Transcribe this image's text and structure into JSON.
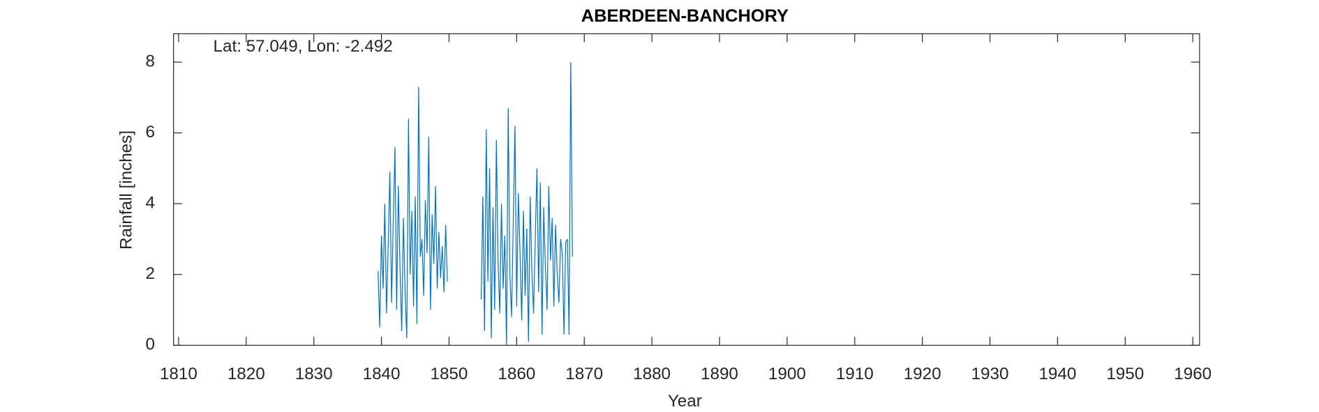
{
  "chart_data": {
    "type": "line",
    "title": "ABERDEEN-BANCHORY",
    "annotation": "Lat: 57.049, Lon: -2.492",
    "x_label": "Year",
    "y_label": "Rainfall [inches]",
    "xlim": [
      1809.25,
      1961
    ],
    "ylim": [
      0,
      8.8
    ],
    "xticks": [
      1810,
      1820,
      1830,
      1840,
      1850,
      1860,
      1870,
      1880,
      1890,
      1900,
      1910,
      1920,
      1930,
      1940,
      1950,
      1960
    ],
    "yticks": [
      0,
      2,
      4,
      6,
      8
    ],
    "x": [
      1839.5,
      1839.75,
      1840,
      1840.25,
      1840.5,
      1840.75,
      1841,
      1841.25,
      1841.5,
      1841.75,
      1842,
      1842.25,
      1842.5,
      1842.75,
      1843,
      1843.25,
      1843.5,
      1843.75,
      1844,
      1844.25,
      1844.5,
      1844.75,
      1845,
      1845.25,
      1845.5,
      1845.75,
      1846,
      1846.25,
      1846.5,
      1846.75,
      1847,
      1847.25,
      1847.5,
      1847.75,
      1848,
      1848.25,
      1848.5,
      1848.75,
      1849,
      1849.25,
      1849.5,
      1849.75,
      1852,
      1854.75,
      1855,
      1855.25,
      1855.5,
      1855.75,
      1856,
      1856.25,
      1856.5,
      1856.75,
      1857,
      1857.25,
      1857.5,
      1857.75,
      1858,
      1858.25,
      1858.5,
      1858.75,
      1859,
      1859.25,
      1859.5,
      1859.75,
      1860,
      1860.25,
      1860.5,
      1860.75,
      1861,
      1861.25,
      1861.5,
      1861.75,
      1862,
      1862.25,
      1862.5,
      1862.75,
      1863,
      1863.25,
      1863.5,
      1863.75,
      1864,
      1864.25,
      1864.5,
      1864.75,
      1865,
      1865.25,
      1865.5,
      1865.75,
      1866,
      1866.25,
      1866.5,
      1866.75,
      1867,
      1867.25,
      1867.5,
      1867.75,
      1868,
      1868.25
    ],
    "series": [
      {
        "color": "#0072bd",
        "values": [
          2.1,
          0.5,
          3.1,
          1.6,
          4.0,
          0.9,
          2.8,
          4.9,
          1.2,
          3.5,
          5.6,
          1.0,
          4.5,
          2.2,
          0.4,
          3.6,
          1.5,
          0.2,
          6.4,
          2.0,
          3.8,
          1.1,
          4.2,
          0.6,
          7.3,
          2.5,
          3.0,
          1.4,
          4.1,
          2.6,
          5.9,
          1.0,
          3.7,
          2.3,
          4.5,
          1.6,
          3.2,
          1.9,
          2.8,
          1.5,
          3.4,
          1.8,
          null,
          1.3,
          4.2,
          0.4,
          6.1,
          1.8,
          5.0,
          0.2,
          3.9,
          1.0,
          5.8,
          2.4,
          0.9,
          4.0,
          1.6,
          3.1,
          0.0,
          6.7,
          2.0,
          0.8,
          3.5,
          6.2,
          1.1,
          4.3,
          2.6,
          0.7,
          3.8,
          1.4,
          3.3,
          0.1,
          4.2,
          2.1,
          0.9,
          3.0,
          5.0,
          1.5,
          4.6,
          0.3,
          3.9,
          2.2,
          1.0,
          4.5,
          2.4,
          3.6,
          1.1,
          3.4,
          2.0,
          1.2,
          3.0,
          2.6,
          0.3,
          2.9,
          3.0,
          0.3,
          8.0,
          2.5
        ]
      }
    ],
    "grid": false
  }
}
